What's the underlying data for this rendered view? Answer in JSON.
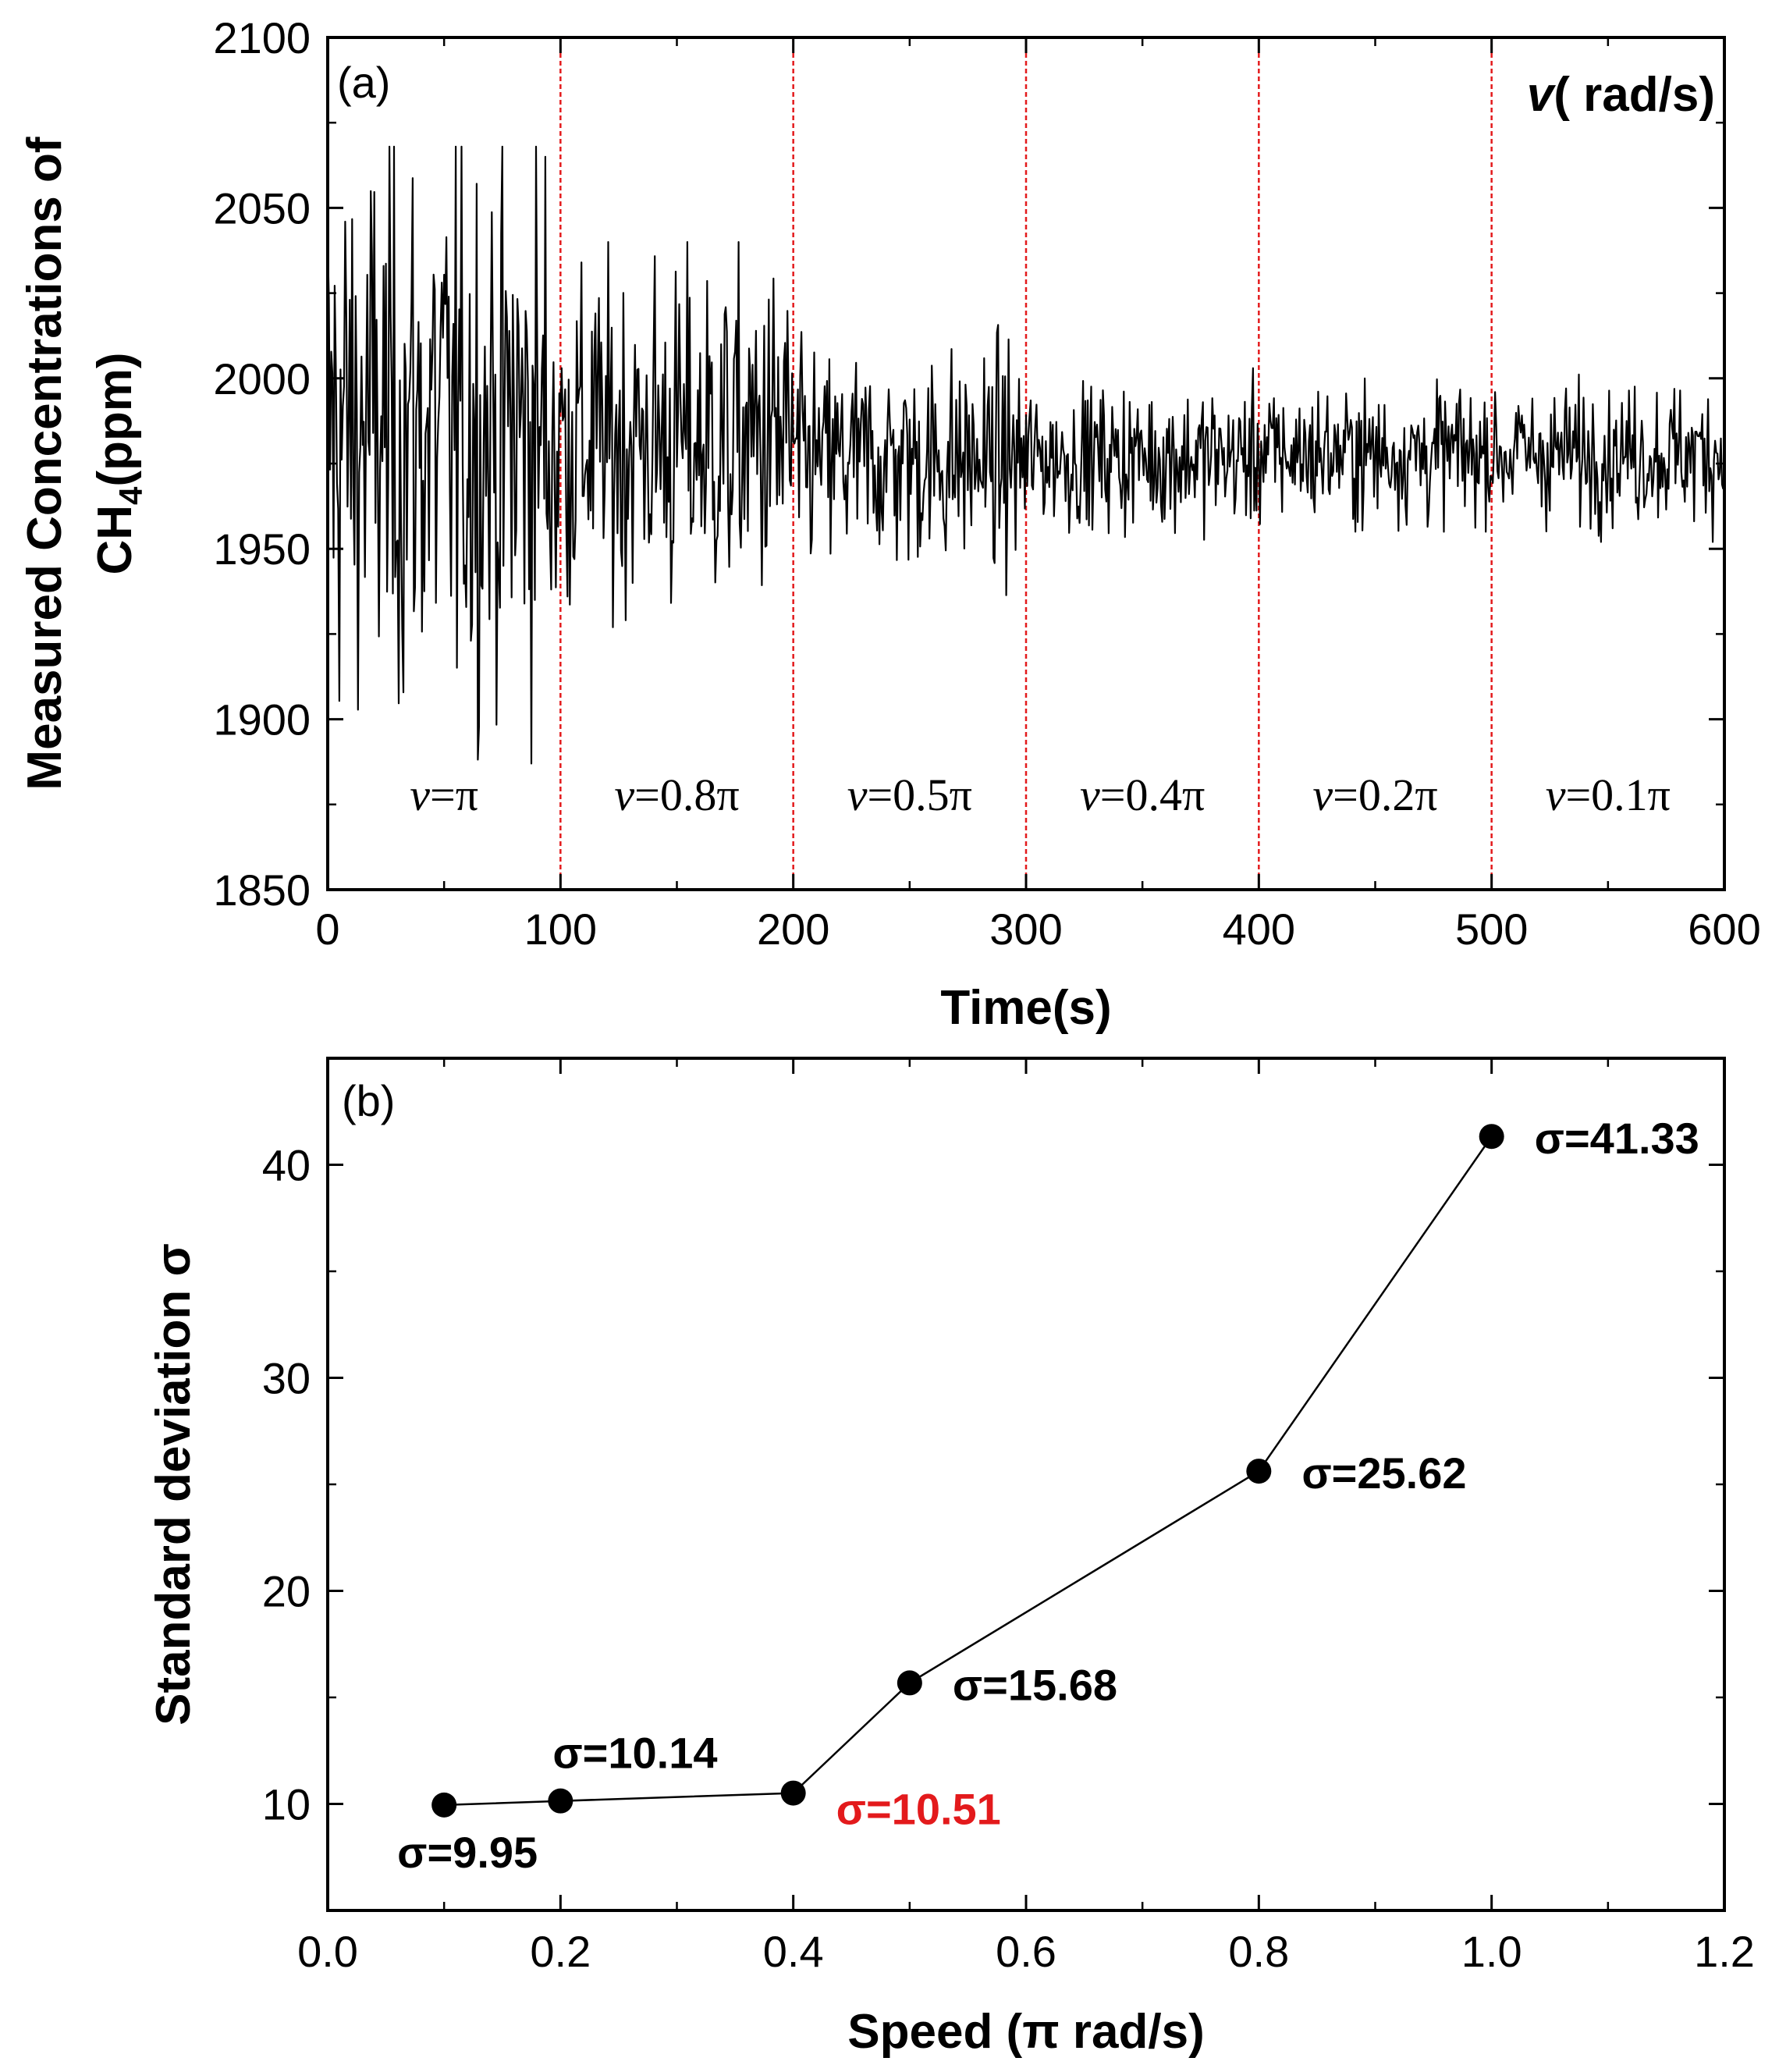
{
  "chart_data": [
    {
      "panel": "(a)",
      "type": "line",
      "title": "",
      "xlabel": "Time(s)",
      "ylabel_line1": "Measured Concentrations of",
      "ylabel_line2_prefix": "CH",
      "ylabel_line2_sub": "4",
      "ylabel_line2_suffix": "(ppm)",
      "xlim": [
        0,
        600
      ],
      "ylim": [
        1850,
        2100
      ],
      "xticks": [
        "0",
        "100",
        "200",
        "300",
        "400",
        "500",
        "600"
      ],
      "yticks": [
        "1850",
        "1900",
        "1950",
        "2000",
        "2050",
        "2100"
      ],
      "unit_label_var": "v",
      "unit_label_rest": "( rad/s)",
      "dividers_x": [
        100,
        200,
        300,
        400,
        500
      ],
      "divider_color": "#e31a1c",
      "regions": [
        {
          "var": "v",
          "text": "=π",
          "x_center": 50
        },
        {
          "var": "v",
          "text": "=0.8π",
          "x_center": 150
        },
        {
          "var": "v",
          "text": "=0.5π",
          "x_center": 250
        },
        {
          "var": "v",
          "text": "=0.4π",
          "x_center": 350
        },
        {
          "var": "v",
          "text": "=0.2π",
          "x_center": 450
        },
        {
          "var": "v",
          "text": "=0.1π",
          "x_center": 550
        }
      ],
      "segments": [
        {
          "x_start": 0,
          "x_end": 100,
          "mean": 1985,
          "std": 41.33,
          "min": 1887,
          "max": 2068
        },
        {
          "x_start": 100,
          "x_end": 200,
          "mean": 1982,
          "std": 25.62,
          "min": 1916,
          "max": 2040
        },
        {
          "x_start": 200,
          "x_end": 300,
          "mean": 1976,
          "std": 15.68,
          "min": 1932,
          "max": 2018
        },
        {
          "x_start": 300,
          "x_end": 400,
          "mean": 1977,
          "std": 10.51,
          "min": 1945,
          "max": 2003
        },
        {
          "x_start": 400,
          "x_end": 500,
          "mean": 1978,
          "std": 10.14,
          "min": 1955,
          "max": 2000
        },
        {
          "x_start": 500,
          "x_end": 600,
          "mean": 1978,
          "std": 9.95,
          "min": 1952,
          "max": 2002
        }
      ],
      "samples_per_second": 2
    },
    {
      "panel": "(b)",
      "type": "line",
      "title": "",
      "xlabel": "Speed (π rad/s)",
      "ylabel": "Standard deviation σ",
      "xlim": [
        0.0,
        1.2
      ],
      "ylim": [
        5,
        45
      ],
      "xticks": [
        "0.0",
        "0.2",
        "0.4",
        "0.6",
        "0.8",
        "1.0",
        "1.2"
      ],
      "ytick_values": [
        10,
        20,
        30,
        40
      ],
      "yticks": [
        "10",
        "20",
        "30",
        "40"
      ],
      "x": [
        0.1,
        0.2,
        0.4,
        0.5,
        0.8,
        1.0
      ],
      "y": [
        9.95,
        10.14,
        10.51,
        15.68,
        25.62,
        41.33
      ],
      "annotations": [
        {
          "text": "σ=9.95",
          "x": 0.1,
          "y": 9.95,
          "pos": "below",
          "color": "#000000"
        },
        {
          "text": "σ=10.14",
          "x": 0.2,
          "y": 10.14,
          "pos": "above",
          "color": "#000000"
        },
        {
          "text": "σ=10.51",
          "x": 0.4,
          "y": 10.51,
          "pos": "right-below",
          "color": "#e31a1c"
        },
        {
          "text": "σ=15.68",
          "x": 0.5,
          "y": 15.68,
          "pos": "right",
          "color": "#000000"
        },
        {
          "text": "σ=25.62",
          "x": 0.8,
          "y": 25.62,
          "pos": "right",
          "color": "#000000"
        },
        {
          "text": "σ=41.33",
          "x": 1.0,
          "y": 41.33,
          "pos": "right",
          "color": "#000000"
        }
      ]
    }
  ]
}
